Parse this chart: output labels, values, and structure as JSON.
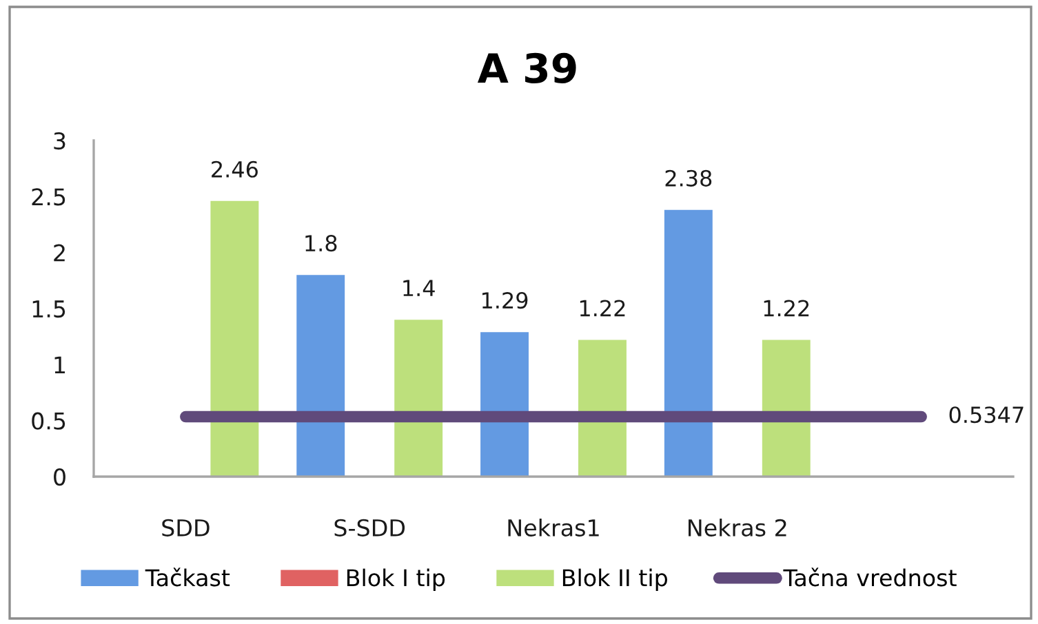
{
  "chart_data": {
    "type": "bar",
    "title": "A 39",
    "categories": [
      "SDD",
      "S-SDD",
      "Nekras1",
      "Nekras 2",
      null
    ],
    "series": [
      {
        "name": "Tačkast",
        "color": "#639ae2",
        "values": [
          null,
          1.8,
          1.29,
          2.38,
          null
        ],
        "value_labels": [
          null,
          "1.8",
          "1.29",
          "2.38",
          null
        ]
      },
      {
        "name": "Blok I tip",
        "color": "#e06262",
        "values": [
          null,
          null,
          null,
          null,
          null
        ]
      },
      {
        "name": "Blok II tip",
        "color": "#bde07c",
        "values": [
          2.46,
          1.4,
          1.22,
          1.22,
          null
        ],
        "value_labels": [
          "2.46",
          "1.4",
          "1.22",
          "1.22",
          null
        ]
      },
      {
        "name": "Tačna vrednost",
        "type": "line",
        "color": "#604a7b",
        "values": [
          0.5347,
          0.5347,
          0.5347,
          0.5347,
          0.5347
        ],
        "value_labels": [
          null,
          null,
          null,
          null,
          "0.5347"
        ]
      }
    ],
    "ylim": [
      0,
      3
    ],
    "yticks": [
      0,
      0.5,
      1,
      1.5,
      2,
      2.5,
      3
    ],
    "grid": false,
    "legend": "bottom"
  }
}
